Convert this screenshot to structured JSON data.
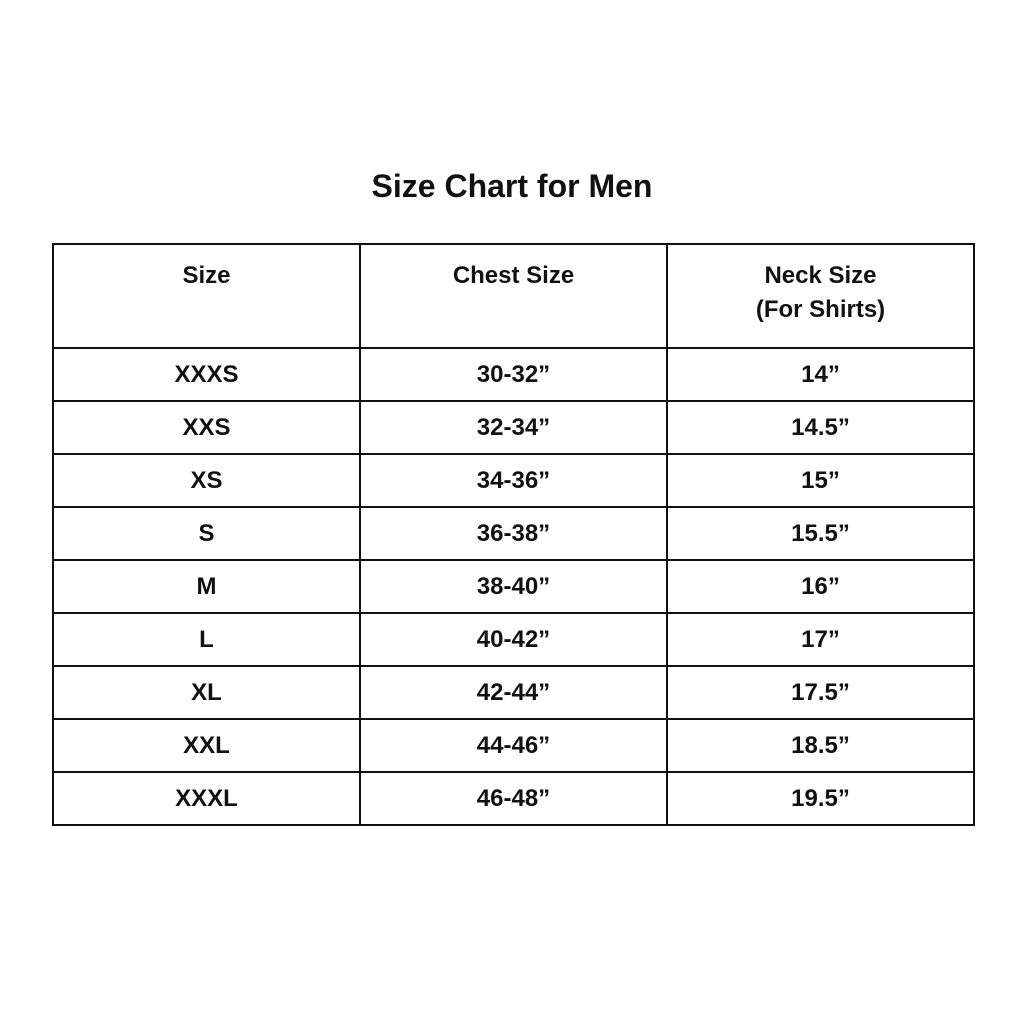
{
  "title": "Size Chart for Men",
  "table": {
    "headers": [
      "Size",
      "Chest Size",
      "Neck Size",
      "(For Shirts)"
    ],
    "rows": [
      [
        "XXXS",
        "30-32”",
        "14”"
      ],
      [
        "XXS",
        "32-34”",
        "14.5”"
      ],
      [
        "XS",
        "34-36”",
        "15”"
      ],
      [
        "S",
        "36-38”",
        "15.5”"
      ],
      [
        "M",
        "38-40”",
        "16”"
      ],
      [
        "L",
        "40-42”",
        "17”"
      ],
      [
        "XL",
        "42-44”",
        "17.5”"
      ],
      [
        "XXL",
        "44-46”",
        "18.5”"
      ],
      [
        "XXXL",
        "46-48”",
        "19.5”"
      ]
    ]
  }
}
